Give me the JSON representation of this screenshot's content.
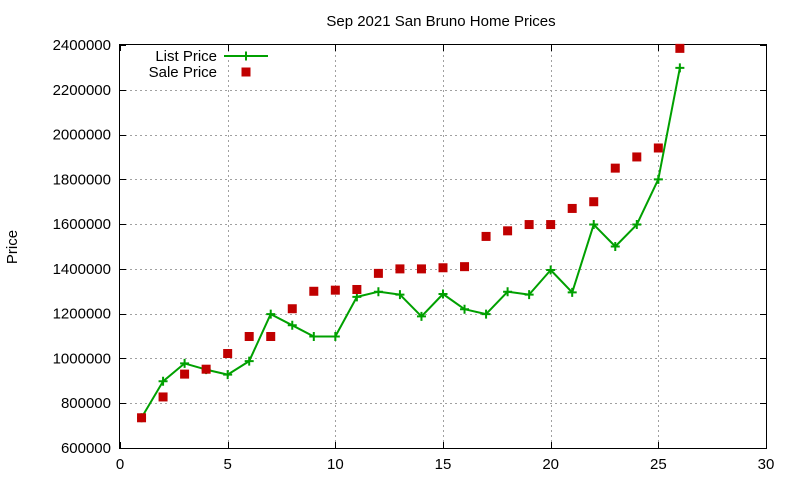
{
  "chart_data": {
    "type": "line",
    "title": "Sep 2021 San Bruno Home Prices",
    "xlabel": "",
    "ylabel": "Price",
    "xlim": [
      0,
      30
    ],
    "ylim": [
      600000,
      2400000
    ],
    "xticks": [
      0,
      5,
      10,
      15,
      20,
      25,
      30
    ],
    "yticks": [
      600000,
      800000,
      1000000,
      1200000,
      1400000,
      1600000,
      1800000,
      2000000,
      2200000,
      2400000
    ],
    "xtick_labels": [
      "0",
      "5",
      "10",
      "15",
      "20",
      "25",
      "30"
    ],
    "ytick_labels": [
      "600000",
      "800000",
      "1000000",
      "1200000",
      "1400000",
      "1600000",
      "1800000",
      "2000000",
      "2200000",
      "2400000"
    ],
    "grid": true,
    "legend_position": "top-left",
    "series": [
      {
        "name": "List Price",
        "style": "line-points",
        "color": "#00a000",
        "x": [
          1,
          2,
          3,
          4,
          5,
          6,
          7,
          8,
          9,
          10,
          11,
          12,
          13,
          14,
          15,
          16,
          17,
          18,
          19,
          20,
          21,
          22,
          23,
          24,
          25,
          26
        ],
        "values": [
          735000,
          898000,
          978000,
          950000,
          928000,
          988000,
          1198000,
          1148000,
          1098000,
          1098000,
          1275000,
          1298000,
          1285000,
          1188000,
          1288000,
          1220000,
          1198000,
          1298000,
          1285000,
          1395000,
          1295000,
          1598000,
          1500000,
          1598000,
          1800000,
          2298000
        ]
      },
      {
        "name": "Sale Price",
        "style": "points",
        "color": "#c00000",
        "x": [
          1,
          2,
          3,
          4,
          5,
          6,
          7,
          8,
          9,
          10,
          11,
          12,
          13,
          14,
          15,
          16,
          17,
          18,
          19,
          20,
          21,
          22,
          23,
          24,
          25,
          26
        ],
        "values": [
          735000,
          828000,
          930000,
          952000,
          1022000,
          1098000,
          1098000,
          1222000,
          1300000,
          1305000,
          1308000,
          1380000,
          1400000,
          1400000,
          1405000,
          1410000,
          1545000,
          1570000,
          1598000,
          1598000,
          1670000,
          1700000,
          1850000,
          1900000,
          1940000,
          2385000
        ]
      }
    ]
  }
}
